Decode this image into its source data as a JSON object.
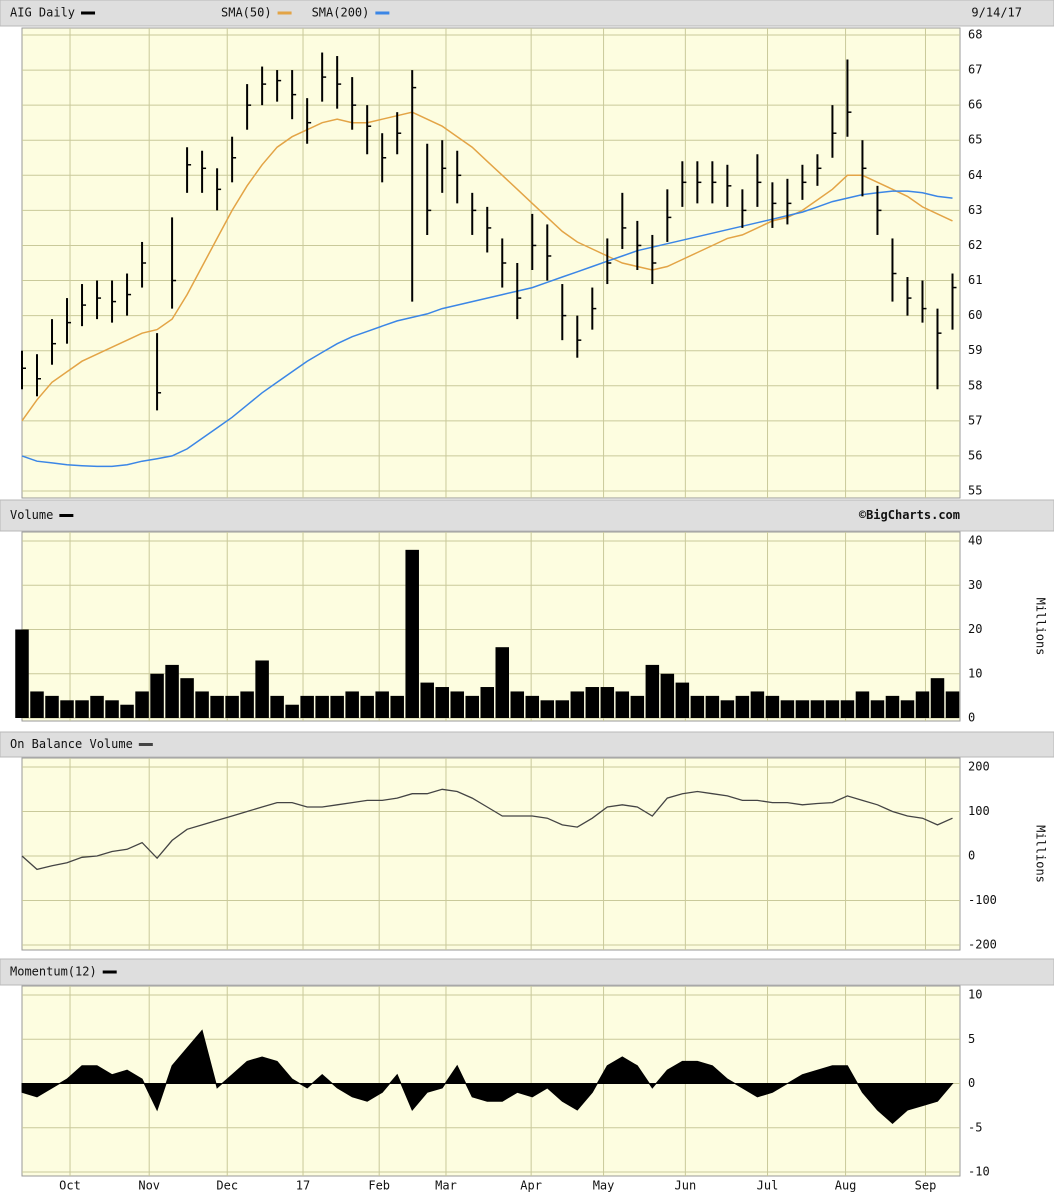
{
  "chart_data": [
    {
      "type": "ohlc",
      "title": "AIG Daily",
      "color": "#000000",
      "date": "9/14/17",
      "x": [
        0,
        4,
        8,
        12,
        16,
        20,
        24,
        28,
        32,
        36,
        40,
        44,
        48,
        52,
        56,
        60,
        64,
        68,
        72,
        76,
        80,
        84,
        88,
        92,
        96,
        100,
        104,
        108,
        112,
        116,
        120,
        124,
        128,
        132,
        136,
        140,
        144,
        148,
        152,
        156,
        160,
        164,
        168,
        172,
        176,
        180,
        184,
        188,
        192,
        196,
        200,
        204,
        208,
        212,
        216,
        220,
        224,
        228,
        232,
        236,
        240,
        244,
        248
      ],
      "xlim": [
        0,
        250
      ],
      "high": [
        59,
        58.9,
        59.9,
        60.5,
        60.9,
        61,
        61,
        61.2,
        62.1,
        59.5,
        62.8,
        64.8,
        64.7,
        64.2,
        65.1,
        66.6,
        67.1,
        67,
        67,
        66.2,
        67.5,
        67.4,
        66.8,
        66,
        65.2,
        65.8,
        67,
        64.9,
        65,
        64.7,
        63.5,
        63.1,
        62.2,
        61.5,
        62.9,
        62.6,
        60.9,
        60,
        60.8,
        62.2,
        63.5,
        62.7,
        62.3,
        63.6,
        64.4,
        64.4,
        64.4,
        64.3,
        63.6,
        64.6,
        63.8,
        63.9,
        64.3,
        64.6,
        66,
        67.3,
        65,
        63.7,
        62.2,
        61.1,
        61,
        60.2,
        61.2
      ],
      "low": [
        57.9,
        57.7,
        58.6,
        59.2,
        59.7,
        59.9,
        59.8,
        60,
        60.8,
        57.3,
        60.2,
        63.5,
        63.5,
        63,
        63.8,
        65.3,
        66,
        66.1,
        65.6,
        64.9,
        66.1,
        65.9,
        65.3,
        64.6,
        63.8,
        64.6,
        60.4,
        62.3,
        63.5,
        63.2,
        62.3,
        61.8,
        60.8,
        59.9,
        61.3,
        61,
        59.3,
        58.8,
        59.6,
        60.9,
        61.9,
        61.3,
        60.9,
        62.1,
        63.1,
        63.2,
        63.2,
        63.1,
        62.5,
        63.1,
        62.5,
        62.6,
        63.3,
        63.7,
        64.5,
        65.1,
        63.4,
        62.3,
        60.4,
        60,
        59.8,
        57.9,
        59.6
      ],
      "close": [
        58.5,
        58.2,
        59.2,
        59.8,
        60.3,
        60.5,
        60.4,
        60.6,
        61.5,
        57.8,
        61,
        64.3,
        64.2,
        63.6,
        64.5,
        66,
        66.6,
        66.7,
        66.3,
        65.5,
        66.8,
        66.6,
        66,
        65.4,
        64.5,
        65.2,
        66.5,
        63,
        64.2,
        64,
        63,
        62.5,
        61.5,
        60.5,
        62,
        61.7,
        60,
        59.3,
        60.2,
        61.5,
        62.5,
        62,
        61.5,
        62.8,
        63.8,
        63.8,
        63.8,
        63.7,
        63,
        63.8,
        63.2,
        63.2,
        63.8,
        64.2,
        65.2,
        65.8,
        64.2,
        63,
        61.2,
        60.5,
        60.2,
        59.5,
        60.8
      ],
      "series": [
        {
          "name": "SMA(50)",
          "color": "#e3a446",
          "values": [
            57,
            57.6,
            58.1,
            58.4,
            58.7,
            58.9,
            59.1,
            59.3,
            59.5,
            59.6,
            59.9,
            60.6,
            61.4,
            62.2,
            63,
            63.7,
            64.3,
            64.8,
            65.1,
            65.3,
            65.5,
            65.6,
            65.5,
            65.5,
            65.6,
            65.7,
            65.8,
            65.6,
            65.4,
            65.1,
            64.8,
            64.4,
            64,
            63.6,
            63.2,
            62.8,
            62.4,
            62.1,
            61.9,
            61.7,
            61.5,
            61.4,
            61.3,
            61.4,
            61.6,
            61.8,
            62,
            62.2,
            62.3,
            62.5,
            62.7,
            62.8,
            63,
            63.3,
            63.6,
            64,
            64,
            63.8,
            63.6,
            63.4,
            63.1,
            62.9,
            62.7
          ]
        },
        {
          "name": "SMA(200)",
          "color": "#3b86e6",
          "values": [
            56,
            55.85,
            55.8,
            55.75,
            55.72,
            55.7,
            55.7,
            55.75,
            55.85,
            55.92,
            56,
            56.2,
            56.5,
            56.8,
            57.1,
            57.45,
            57.8,
            58.1,
            58.4,
            58.7,
            58.95,
            59.2,
            59.4,
            59.55,
            59.7,
            59.85,
            59.95,
            60.05,
            60.2,
            60.3,
            60.4,
            60.5,
            60.6,
            60.7,
            60.8,
            60.95,
            61.1,
            61.25,
            61.4,
            61.55,
            61.7,
            61.85,
            61.95,
            62.05,
            62.15,
            62.25,
            62.35,
            62.45,
            62.55,
            62.65,
            62.75,
            62.85,
            62.95,
            63.1,
            63.25,
            63.35,
            63.45,
            63.5,
            63.55,
            63.55,
            63.5,
            63.4,
            63.35
          ]
        }
      ],
      "ylim": [
        55,
        68
      ],
      "yticks": [
        55,
        56,
        57,
        58,
        59,
        60,
        61,
        62,
        63,
        64,
        65,
        66,
        67,
        68
      ],
      "grid": true
    },
    {
      "type": "bar",
      "title": "Volume",
      "color": "#000000",
      "credit": "©BigCharts.com",
      "y_label": "Millions",
      "x": [
        0,
        4,
        8,
        12,
        16,
        20,
        24,
        28,
        32,
        36,
        40,
        44,
        48,
        52,
        56,
        60,
        64,
        68,
        72,
        76,
        80,
        84,
        88,
        92,
        96,
        100,
        104,
        108,
        112,
        116,
        120,
        124,
        128,
        132,
        136,
        140,
        144,
        148,
        152,
        156,
        160,
        164,
        168,
        172,
        176,
        180,
        184,
        188,
        192,
        196,
        200,
        204,
        208,
        212,
        216,
        220,
        224,
        228,
        232,
        236,
        240,
        244,
        248
      ],
      "xlim": [
        0,
        250
      ],
      "values": [
        20,
        6,
        5,
        4,
        4,
        5,
        4,
        3,
        6,
        10,
        12,
        9,
        6,
        5,
        5,
        6,
        13,
        5,
        3,
        5,
        5,
        5,
        6,
        5,
        6,
        5,
        38,
        8,
        7,
        6,
        5,
        7,
        16,
        6,
        5,
        4,
        4,
        6,
        7,
        7,
        6,
        5,
        12,
        10,
        8,
        5,
        5,
        4,
        5,
        6,
        5,
        4,
        4,
        4,
        4,
        4,
        6,
        4,
        5,
        4,
        6,
        9,
        6
      ],
      "ylim": [
        0,
        40
      ],
      "yticks": [
        0,
        10,
        20,
        30,
        40
      ],
      "grid": true
    },
    {
      "type": "line",
      "title": "On Balance Volume",
      "color": "#444444",
      "y_label": "Millions",
      "x": [
        0,
        4,
        8,
        12,
        16,
        20,
        24,
        28,
        32,
        36,
        40,
        44,
        48,
        52,
        56,
        60,
        64,
        68,
        72,
        76,
        80,
        84,
        88,
        92,
        96,
        100,
        104,
        108,
        112,
        116,
        120,
        124,
        128,
        132,
        136,
        140,
        144,
        148,
        152,
        156,
        160,
        164,
        168,
        172,
        176,
        180,
        184,
        188,
        192,
        196,
        200,
        204,
        208,
        212,
        216,
        220,
        224,
        228,
        232,
        236,
        240,
        244,
        248
      ],
      "xlim": [
        0,
        250
      ],
      "values": [
        0,
        -30,
        -22,
        -15,
        -3,
        0,
        10,
        15,
        30,
        -5,
        35,
        60,
        70,
        80,
        90,
        100,
        110,
        120,
        120,
        110,
        110,
        115,
        120,
        125,
        125,
        130,
        140,
        140,
        150,
        145,
        130,
        110,
        90,
        90,
        90,
        85,
        70,
        65,
        85,
        110,
        115,
        110,
        90,
        130,
        140,
        145,
        140,
        135,
        125,
        125,
        120,
        120,
        115,
        118,
        120,
        135,
        125,
        115,
        100,
        90,
        85,
        70,
        85
      ],
      "ylim": [
        -200,
        200
      ],
      "yticks": [
        -200,
        -100,
        0,
        100,
        200
      ],
      "grid": true
    },
    {
      "type": "area",
      "title": "Momentum(12)",
      "color": "#000000",
      "x": [
        0,
        4,
        8,
        12,
        16,
        20,
        24,
        28,
        32,
        36,
        40,
        44,
        48,
        52,
        56,
        60,
        64,
        68,
        72,
        76,
        80,
        84,
        88,
        92,
        96,
        100,
        104,
        108,
        112,
        116,
        120,
        124,
        128,
        132,
        136,
        140,
        144,
        148,
        152,
        156,
        160,
        164,
        168,
        172,
        176,
        180,
        184,
        188,
        192,
        196,
        200,
        204,
        208,
        212,
        216,
        220,
        224,
        228,
        232,
        236,
        240,
        244,
        248
      ],
      "xlim": [
        0,
        250
      ],
      "values": [
        -1,
        -1.5,
        -0.5,
        0.5,
        2,
        2,
        1,
        1.5,
        0.5,
        -3,
        2,
        4,
        6,
        -0.5,
        1,
        2.5,
        3,
        2.5,
        0.5,
        -0.5,
        1,
        -0.5,
        -1.5,
        -2,
        -1,
        1,
        -3,
        -1,
        -0.5,
        2,
        -1.5,
        -2,
        -2,
        -1,
        -1.5,
        -0.5,
        -2,
        -3,
        -1,
        2,
        3,
        2,
        -0.5,
        1.5,
        2.5,
        2.5,
        2,
        0.5,
        -0.5,
        -1.5,
        -1,
        0,
        1,
        1.5,
        2,
        2,
        -1,
        -3,
        -4.5,
        -3,
        -2.5,
        -2,
        0
      ],
      "ylim": [
        -10,
        10
      ],
      "yticks": [
        -10,
        -5,
        0,
        5,
        10
      ],
      "grid": true,
      "xticks": [
        {
          "value": 12.8,
          "label": "Oct"
        },
        {
          "value": 33.9,
          "label": "Nov"
        },
        {
          "value": 54.7,
          "label": "Dec"
        },
        {
          "value": 74.9,
          "label": "17"
        },
        {
          "value": 95.2,
          "label": "Feb"
        },
        {
          "value": 113,
          "label": "Mar"
        },
        {
          "value": 135.7,
          "label": "Apr"
        },
        {
          "value": 155,
          "label": "May"
        },
        {
          "value": 176.8,
          "label": "Jun"
        },
        {
          "value": 198.7,
          "label": "Jul"
        },
        {
          "value": 219.5,
          "label": "Aug"
        },
        {
          "value": 240.8,
          "label": "Sep"
        }
      ]
    }
  ]
}
